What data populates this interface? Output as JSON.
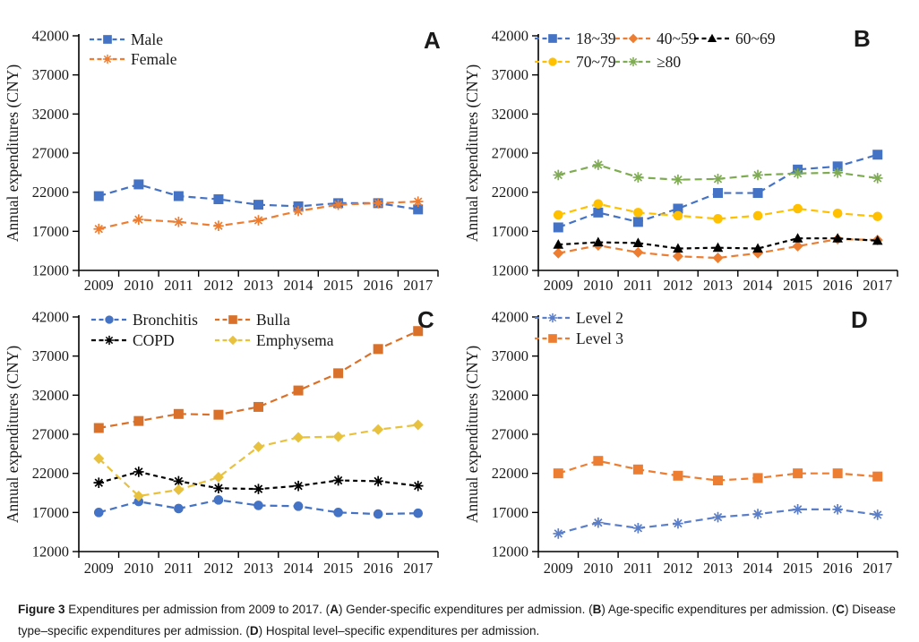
{
  "figure": {
    "caption": {
      "segments": [
        {
          "text": "Figure 3 ",
          "bold": true
        },
        {
          "text": "Expenditures per admission from 2009 to 2017. (",
          "bold": false
        },
        {
          "text": "A",
          "bold": true
        },
        {
          "text": ") Gender-specific expenditures per admission. (",
          "bold": false
        },
        {
          "text": "B",
          "bold": true
        },
        {
          "text": ") Age-specific expenditures per admission. (",
          "bold": false
        },
        {
          "text": "C",
          "bold": true
        },
        {
          "text": ") Disease type–specific expenditures per admission. (",
          "bold": false
        },
        {
          "text": "D",
          "bold": true
        },
        {
          "text": ") Hospital level–specific expenditures per admission.",
          "bold": false
        }
      ]
    }
  },
  "chart_data": [
    {
      "type": "line",
      "panel_label": "A",
      "title": "",
      "xlabel": "",
      "ylabel": "Annual expenditures (CNY)",
      "ylim": [
        12000,
        42000
      ],
      "yticks": [
        "12000",
        "17000",
        "22000",
        "27000",
        "32000",
        "37000",
        "42000"
      ],
      "categories": [
        "2009",
        "2010",
        "2011",
        "2012",
        "2013",
        "2014",
        "2015",
        "2016",
        "2017"
      ],
      "grid": false,
      "legend_position": "top-left-inside",
      "legend_cols": [
        100
      ],
      "series": [
        {
          "name": "Male",
          "color": "#4472C4",
          "marker": "square",
          "dash": "8 5",
          "values": [
            21500,
            23000,
            21500,
            21100,
            20400,
            20200,
            20600,
            20600,
            19800
          ]
        },
        {
          "name": "Female",
          "color": "#ED7D31",
          "marker": "asterisk",
          "dash": "8 5",
          "values": [
            17300,
            18500,
            18200,
            17700,
            18400,
            19600,
            20400,
            20600,
            20800
          ]
        }
      ]
    },
    {
      "type": "line",
      "panel_label": "B",
      "title": "",
      "xlabel": "",
      "ylabel": "Annual expenditures (CNY)",
      "ylim": [
        12000,
        42000
      ],
      "yticks": [
        "12000",
        "17000",
        "22000",
        "27000",
        "32000",
        "37000",
        "42000"
      ],
      "categories": [
        "2009",
        "2010",
        "2011",
        "2012",
        "2013",
        "2014",
        "2015",
        "2016",
        "2017"
      ],
      "grid": false,
      "legend_position": "top-left-inside",
      "legend_cols": [
        84,
        174,
        262
      ],
      "series": [
        {
          "name": "18~39",
          "color": "#4472C4",
          "marker": "square",
          "dash": "8 5",
          "values": [
            17500,
            19400,
            18200,
            19900,
            21900,
            21900,
            24900,
            25300,
            26800
          ]
        },
        {
          "name": "40~59",
          "color": "#ED7D31",
          "marker": "diamond",
          "dash": "8 5",
          "values": [
            14200,
            15200,
            14300,
            13800,
            13600,
            14200,
            15100,
            16000,
            15900
          ]
        },
        {
          "name": "60~69",
          "color": "#000000",
          "marker": "triangle",
          "dash": "5 4",
          "values": [
            15300,
            15600,
            15500,
            14800,
            14900,
            14800,
            16100,
            16100,
            15800
          ]
        },
        {
          "name": "70~79",
          "color": "#FFC000",
          "marker": "circle",
          "dash": "8 5",
          "values": [
            19100,
            20500,
            19400,
            19000,
            18600,
            19000,
            19900,
            19300,
            18900
          ]
        },
        {
          "name": "≥80",
          "color": "#7FAC53",
          "marker": "asterisk",
          "dash": "8 5",
          "values": [
            24200,
            25500,
            23900,
            23600,
            23700,
            24200,
            24400,
            24500,
            23800
          ]
        }
      ]
    },
    {
      "type": "line",
      "panel_label": "C",
      "title": "",
      "xlabel": "",
      "ylabel": "Annual expenditures (CNY)",
      "ylim": [
        12000,
        42000
      ],
      "yticks": [
        "12000",
        "17000",
        "22000",
        "27000",
        "32000",
        "37000",
        "42000"
      ],
      "categories": [
        "2009",
        "2010",
        "2011",
        "2012",
        "2013",
        "2014",
        "2015",
        "2016",
        "2017"
      ],
      "grid": false,
      "legend_position": "top-left-inside",
      "legend_cols": [
        102,
        240
      ],
      "series": [
        {
          "name": "Bronchitis",
          "color": "#4472C4",
          "marker": "circle",
          "dash": "8 5",
          "values": [
            17000,
            18400,
            17500,
            18600,
            17900,
            17800,
            17000,
            16800,
            16900
          ]
        },
        {
          "name": "Bulla",
          "color": "#D9712A",
          "marker": "square",
          "dash": "8 5",
          "values": [
            27800,
            28700,
            29600,
            29500,
            30500,
            32600,
            34800,
            37900,
            40200
          ]
        },
        {
          "name": "COPD",
          "color": "#000000",
          "marker": "asterisk",
          "dash": "5 4",
          "values": [
            20800,
            22200,
            21000,
            20100,
            20000,
            20400,
            21100,
            21000,
            20400
          ]
        },
        {
          "name": "Emphysema",
          "color": "#E8C13E",
          "marker": "diamond",
          "dash": "8 5",
          "values": [
            23900,
            19100,
            19900,
            21500,
            25400,
            26600,
            26700,
            27600,
            28200
          ]
        }
      ]
    },
    {
      "type": "line",
      "panel_label": "D",
      "title": "",
      "xlabel": "",
      "ylabel": "Annual expenditures (CNY)",
      "ylim": [
        12000,
        42000
      ],
      "yticks": [
        "12000",
        "17000",
        "22000",
        "27000",
        "32000",
        "37000",
        "42000"
      ],
      "categories": [
        "2009",
        "2010",
        "2011",
        "2012",
        "2013",
        "2014",
        "2015",
        "2016",
        "2017"
      ],
      "grid": false,
      "legend_position": "top-left-inside",
      "legend_cols": [
        84
      ],
      "series": [
        {
          "name": "Level 2",
          "color": "#5B7EC8",
          "marker": "asterisk",
          "dash": "8 5",
          "values": [
            14300,
            15700,
            15000,
            15600,
            16400,
            16800,
            17400,
            17400,
            16700
          ]
        },
        {
          "name": "Level 3",
          "color": "#ED7D31",
          "marker": "square",
          "dash": "8 5",
          "values": [
            22000,
            23600,
            22500,
            21700,
            21100,
            21400,
            22000,
            22000,
            21600
          ]
        }
      ]
    }
  ]
}
